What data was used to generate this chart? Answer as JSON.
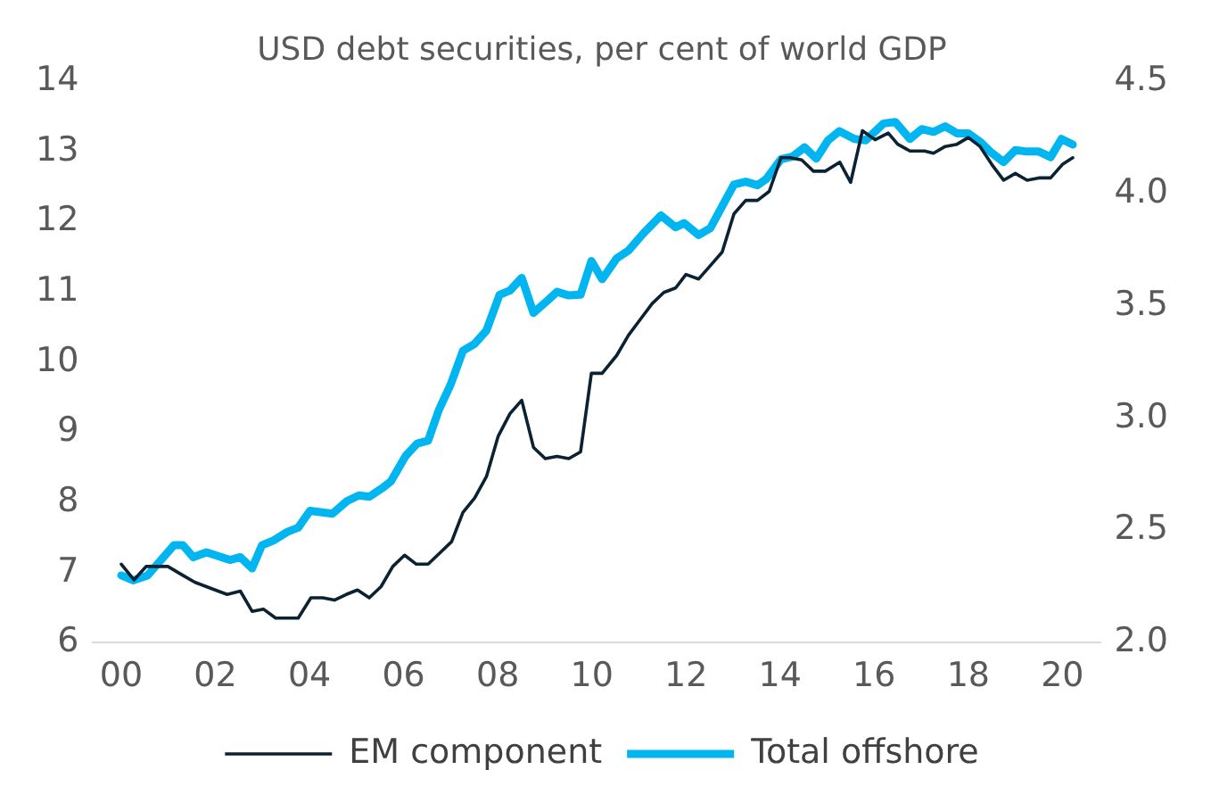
{
  "chart_data": {
    "type": "line",
    "title": "USD debt securities, per cent of world GDP",
    "xticks": [
      {
        "value": 2000,
        "label": "00"
      },
      {
        "value": 2002,
        "label": "02"
      },
      {
        "value": 2004,
        "label": "04"
      },
      {
        "value": 2006,
        "label": "06"
      },
      {
        "value": 2008,
        "label": "08"
      },
      {
        "value": 2010,
        "label": "10"
      },
      {
        "value": 2012,
        "label": "12"
      },
      {
        "value": 2014,
        "label": "14"
      },
      {
        "value": 2016,
        "label": "16"
      },
      {
        "value": 2018,
        "label": "18"
      },
      {
        "value": 2020,
        "label": "20"
      }
    ],
    "xlim": [
      1999.4,
      2020.8
    ],
    "ylim": [
      6,
      14
    ],
    "yticks": [
      6,
      7,
      8,
      9,
      10,
      11,
      12,
      13,
      14
    ],
    "y2lim": [
      2.0,
      4.5
    ],
    "y2ticks": [
      {
        "value": 2,
        "label": "2.0"
      },
      {
        "value": 2.5,
        "label": "2.5"
      },
      {
        "value": 3,
        "label": "3.0"
      },
      {
        "value": 3.5,
        "label": "3.5"
      },
      {
        "value": 4,
        "label": "4.0"
      },
      {
        "value": 4.5,
        "label": "4.5"
      }
    ],
    "grid": false,
    "legend": "bottom",
    "marker": "none",
    "line_style": "solid",
    "series": [
      {
        "name": "Total offshore",
        "color": "#00b5f0",
        "x": [
          2000.0,
          2000.25,
          2000.56,
          2001.12,
          2001.31,
          2001.53,
          2001.81,
          2002.31,
          2002.53,
          2002.78,
          2002.99,
          2003.24,
          2003.53,
          2003.76,
          2004.01,
          2004.49,
          2004.8,
          2005.05,
          2005.27,
          2005.54,
          2005.73,
          2006.04,
          2006.29,
          2006.52,
          2006.75,
          2007.0,
          2007.26,
          2007.51,
          2007.76,
          2008.04,
          2008.26,
          2008.51,
          2008.76,
          2009.03,
          2009.26,
          2009.51,
          2009.76,
          2009.99,
          2010.22,
          2010.53,
          2010.78,
          2011.09,
          2011.47,
          2011.78,
          2011.96,
          2012.27,
          2012.52,
          2012.77,
          2013.02,
          2013.27,
          2013.52,
          2013.71,
          2014.02,
          2014.27,
          2014.52,
          2014.77,
          2015.02,
          2015.26,
          2015.58,
          2015.82,
          2016.2,
          2016.45,
          2016.76,
          2017.01,
          2017.26,
          2017.51,
          2017.76,
          2018.0,
          2018.25,
          2018.5,
          2018.75,
          2019.0,
          2019.25,
          2019.5,
          2019.75,
          2019.98,
          2020.22
        ],
        "values": [
          6.96,
          6.89,
          6.96,
          7.39,
          7.39,
          7.22,
          7.29,
          7.18,
          7.22,
          7.06,
          7.39,
          7.46,
          7.58,
          7.64,
          7.88,
          7.84,
          8.02,
          8.1,
          8.08,
          8.2,
          8.3,
          8.66,
          8.84,
          8.88,
          9.32,
          9.68,
          10.16,
          10.26,
          10.45,
          10.96,
          11.02,
          11.2,
          10.7,
          10.86,
          11.0,
          10.95,
          10.96,
          11.44,
          11.18,
          11.48,
          11.59,
          11.83,
          12.09,
          11.92,
          11.98,
          11.81,
          11.91,
          12.22,
          12.53,
          12.57,
          12.52,
          12.61,
          12.89,
          12.93,
          13.06,
          12.9,
          13.16,
          13.29,
          13.18,
          13.16,
          13.4,
          13.42,
          13.18,
          13.32,
          13.28,
          13.36,
          13.26,
          13.26,
          13.14,
          12.98,
          12.85,
          13.02,
          13.0,
          13.0,
          12.92,
          13.18,
          13.1
        ]
      },
      {
        "name": "EM component",
        "color": "#0b2233",
        "axis": "y2",
        "x": [
          2000.0,
          2000.27,
          2000.53,
          2000.99,
          2001.31,
          2001.56,
          2001.87,
          2002.25,
          2002.53,
          2002.78,
          2003.02,
          2003.28,
          2003.76,
          2004.03,
          2004.28,
          2004.53,
          2004.78,
          2005.02,
          2005.27,
          2005.52,
          2005.77,
          2006.02,
          2006.27,
          2006.52,
          2006.77,
          2007.02,
          2007.26,
          2007.51,
          2007.76,
          2008.01,
          2008.26,
          2008.51,
          2008.76,
          2009.01,
          2009.26,
          2009.51,
          2009.76,
          2009.99,
          2010.22,
          2010.53,
          2010.78,
          2011.03,
          2011.28,
          2011.53,
          2011.78,
          2012.0,
          2012.27,
          2012.52,
          2012.77,
          2013.02,
          2013.27,
          2013.52,
          2013.77,
          2014.02,
          2014.21,
          2014.46,
          2014.71,
          2014.96,
          2015.27,
          2015.5,
          2015.75,
          2016.02,
          2016.3,
          2016.5,
          2016.76,
          2017.07,
          2017.26,
          2017.51,
          2017.76,
          2018.0,
          2018.25,
          2018.5,
          2018.75,
          2019.0,
          2019.25,
          2019.5,
          2019.75,
          2020.0,
          2020.22
        ],
        "values": [
          2.35,
          2.28,
          2.34,
          2.34,
          2.3,
          2.27,
          2.245,
          2.215,
          2.23,
          2.14,
          2.15,
          2.11,
          2.11,
          2.2,
          2.2,
          2.19,
          2.215,
          2.235,
          2.2,
          2.25,
          2.34,
          2.39,
          2.35,
          2.35,
          2.4,
          2.45,
          2.58,
          2.645,
          2.74,
          2.92,
          3.02,
          3.08,
          2.87,
          2.82,
          2.83,
          2.82,
          2.85,
          3.2,
          3.2,
          3.28,
          3.37,
          3.44,
          3.51,
          3.56,
          3.58,
          3.64,
          3.62,
          3.68,
          3.74,
          3.91,
          3.97,
          3.97,
          4.01,
          4.16,
          4.16,
          4.15,
          4.1,
          4.1,
          4.14,
          4.05,
          4.28,
          4.24,
          4.27,
          4.22,
          4.19,
          4.19,
          4.18,
          4.21,
          4.22,
          4.25,
          4.21,
          4.13,
          4.06,
          4.09,
          4.06,
          4.07,
          4.07,
          4.13,
          4.16
        ]
      }
    ]
  }
}
